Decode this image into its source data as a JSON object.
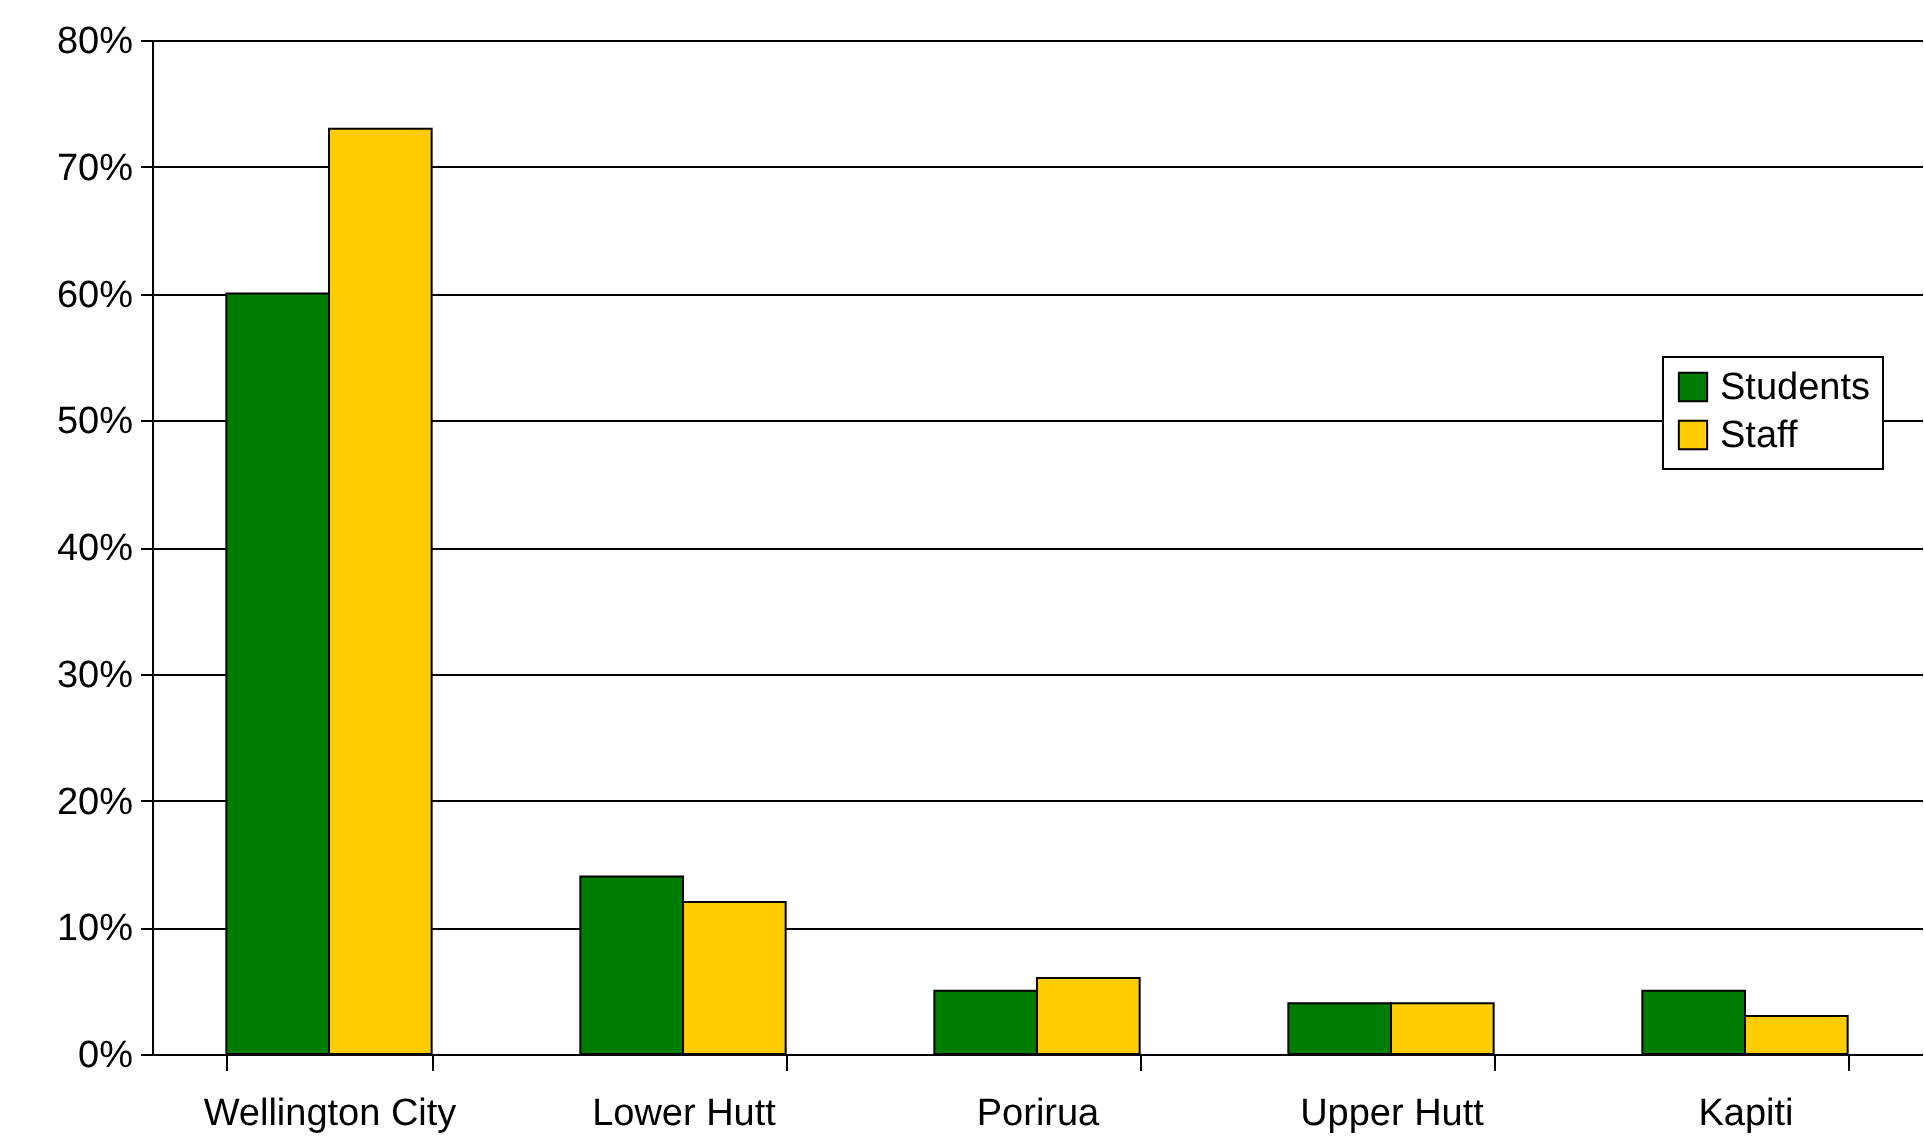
{
  "chart_data": {
    "type": "bar",
    "categories": [
      "Wellington City",
      "Lower Hutt",
      "Porirua",
      "Upper Hutt",
      "Kapiti"
    ],
    "series": [
      {
        "name": "Students",
        "color": "#007c00",
        "values": [
          60,
          14,
          5,
          4,
          5
        ]
      },
      {
        "name": "Staff",
        "color": "#ffcc00",
        "values": [
          73,
          12,
          6,
          4,
          3
        ]
      }
    ],
    "ylim": [
      0,
      80
    ],
    "yticks": [
      {
        "value": 0,
        "label": "0%"
      },
      {
        "value": 10,
        "label": "10%"
      },
      {
        "value": 20,
        "label": "20%"
      },
      {
        "value": 30,
        "label": "30%"
      },
      {
        "value": 40,
        "label": "40%"
      },
      {
        "value": 50,
        "label": "50%"
      },
      {
        "value": 60,
        "label": "60%"
      },
      {
        "value": 70,
        "label": "70%"
      },
      {
        "value": 80,
        "label": "80%"
      }
    ],
    "grid": "y",
    "legend": "right"
  }
}
